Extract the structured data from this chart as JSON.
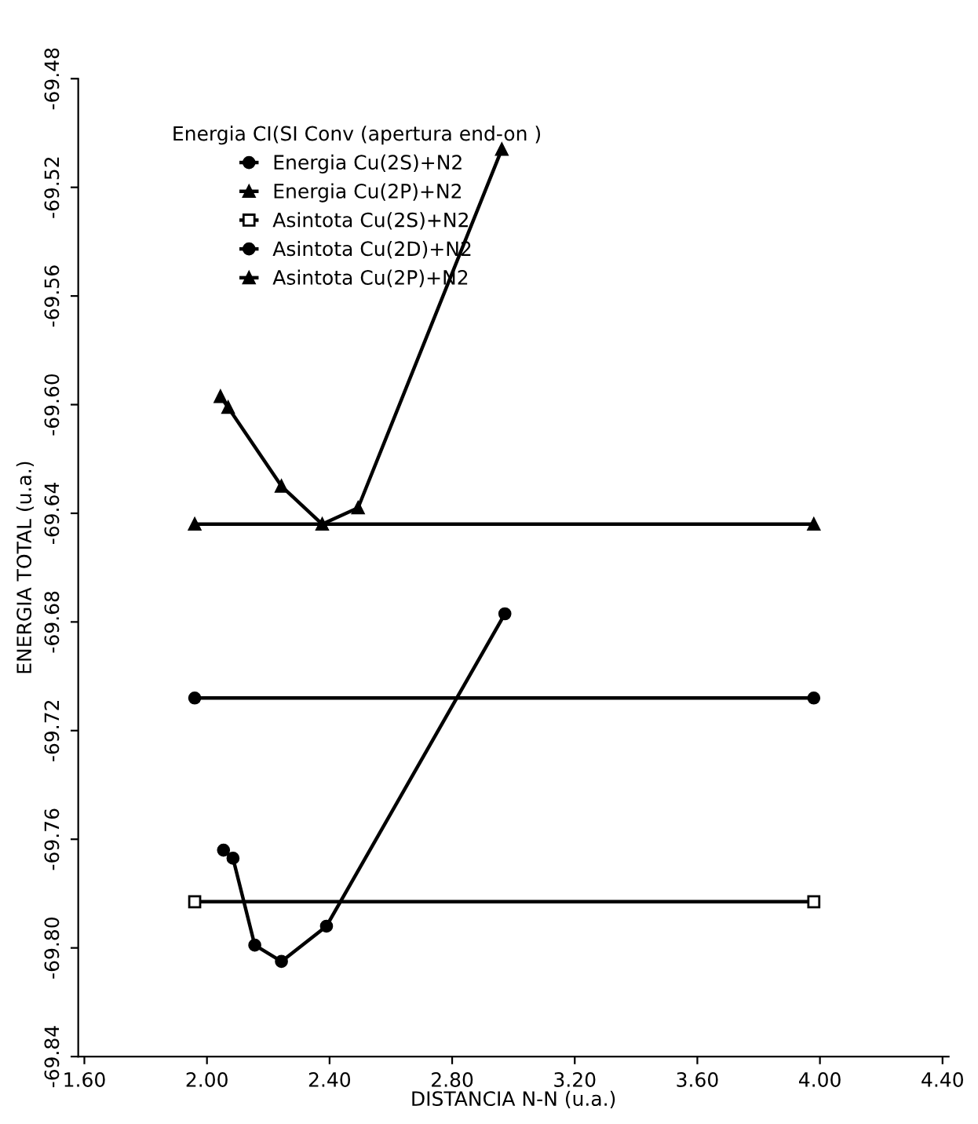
{
  "chart_data": {
    "type": "line",
    "xlabel": "DISTANCIA N-N (u.a.)",
    "ylabel": "ENERGIA TOTAL (u.a.)",
    "legend_title": "Energia CI(SI Conv (apertura end-on )",
    "legend": "top",
    "grid": false,
    "xlim": [
      1.58,
      4.42
    ],
    "xticks": [
      {
        "value": 1.6,
        "label": "1.60"
      },
      {
        "value": 2.0,
        "label": "2.00"
      },
      {
        "value": 2.4,
        "label": "2.40"
      },
      {
        "value": 2.8,
        "label": "2.80"
      },
      {
        "value": 3.2,
        "label": "3.20"
      },
      {
        "value": 3.6,
        "label": "3.60"
      },
      {
        "value": 4.0,
        "label": "4.00"
      },
      {
        "value": 4.4,
        "label": "4.40"
      }
    ],
    "ylim": [
      -69.84,
      -69.48
    ],
    "yticks": [
      -69.84,
      {
        "value": -69.8,
        "label": "-69.80"
      },
      -69.76,
      -69.72,
      -69.68,
      -69.64,
      {
        "value": -69.6,
        "label": "-69.60"
      },
      -69.56,
      -69.52,
      -69.48
    ],
    "series": [
      {
        "name": "Energia Cu(2S)+N2",
        "color": "#000000",
        "marker": "circle",
        "x": [
          2.054,
          2.085,
          2.156,
          2.243,
          2.39,
          2.972
        ],
        "values": [
          -69.764,
          -69.767,
          -69.799,
          -69.805,
          -69.792,
          -69.677
        ]
      },
      {
        "name": "Energia Cu(2P)+N2",
        "color": "#000000",
        "marker": "triangle",
        "x": [
          2.044,
          2.069,
          2.243,
          2.376,
          2.493,
          2.962
        ],
        "values": [
          -69.597,
          -69.601,
          -69.63,
          -69.644,
          -69.638,
          -69.506
        ]
      },
      {
        "name": "Asintota Cu(2S)+N2",
        "color": "#000000",
        "marker": "square",
        "x": [
          1.96,
          3.98
        ],
        "values": [
          -69.783,
          -69.783
        ]
      },
      {
        "name": "Asintota Cu(2D)+N2",
        "color": "#000000",
        "marker": "circle",
        "x": [
          1.96,
          3.98
        ],
        "values": [
          -69.708,
          -69.708
        ]
      },
      {
        "name": "Asintota Cu(2P)+N2",
        "color": "#000000",
        "marker": "triangle",
        "x": [
          1.96,
          3.98
        ],
        "values": [
          -69.644,
          -69.644
        ]
      }
    ]
  }
}
